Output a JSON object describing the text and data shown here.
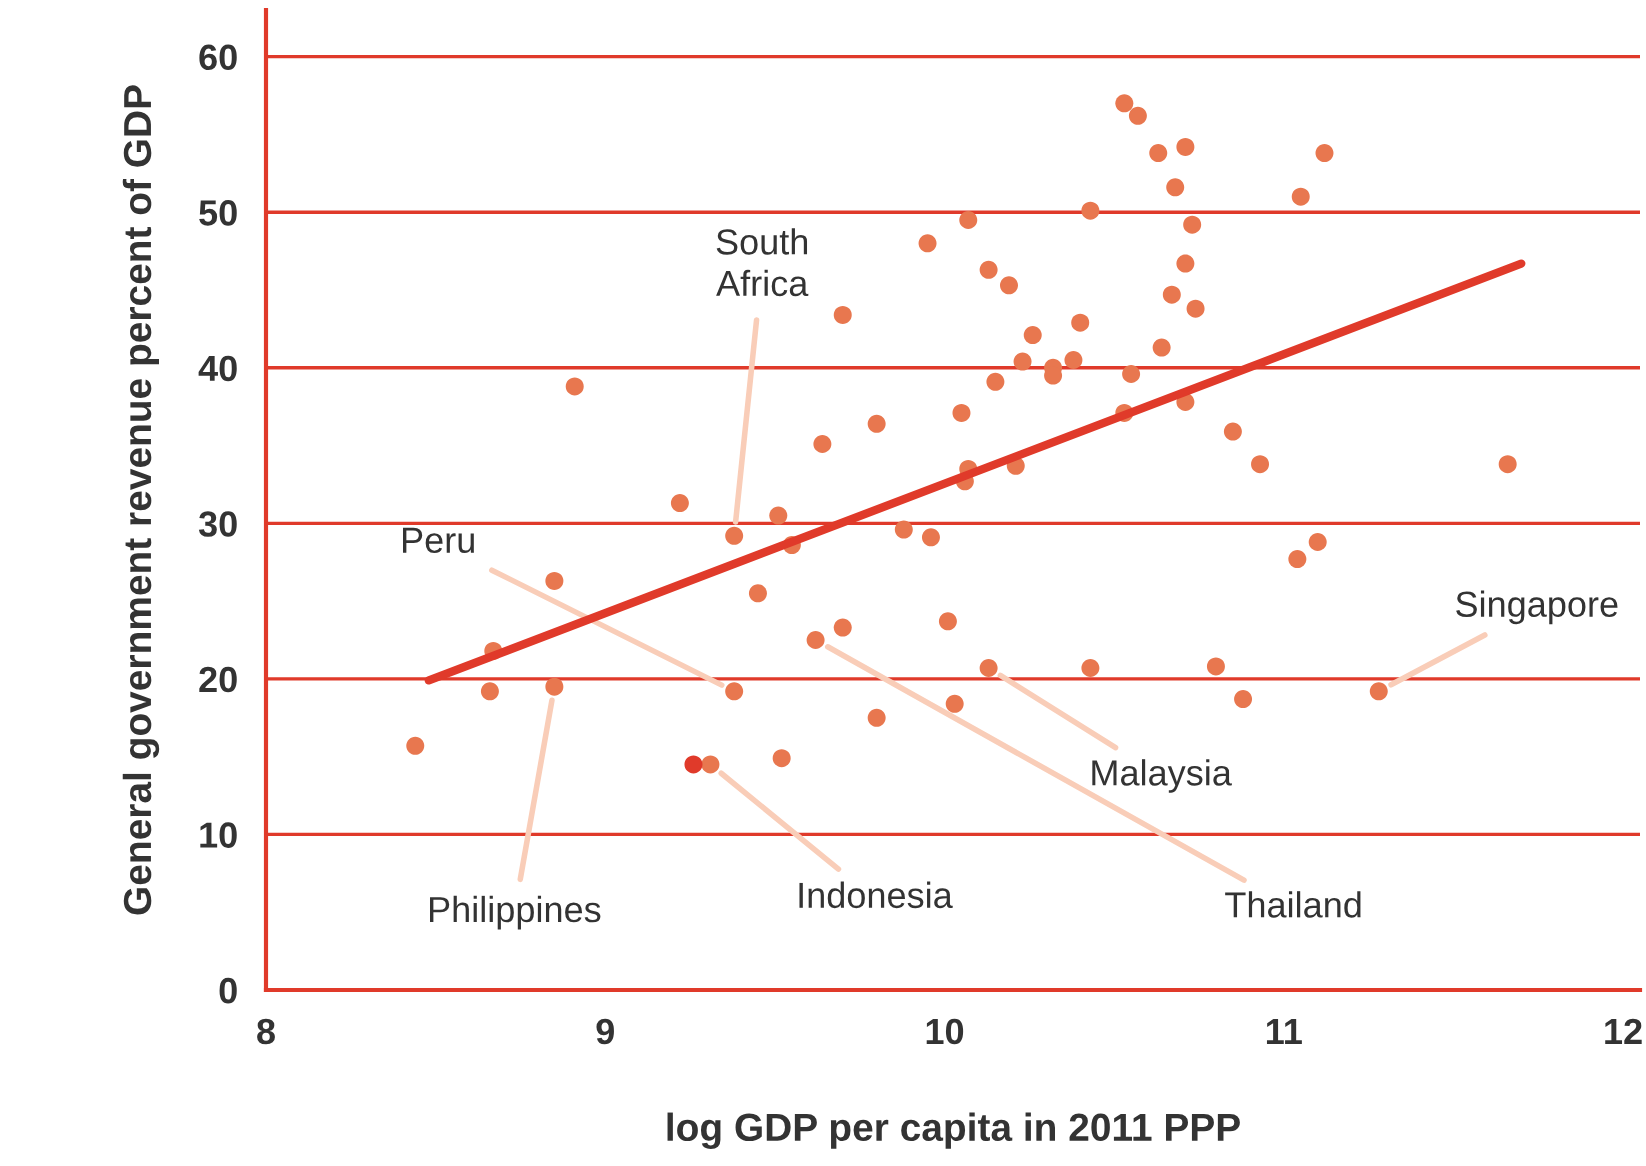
{
  "chart_data": {
    "type": "scatter",
    "xlabel": "log GDP per capita in 2011 PPP",
    "ylabel": "General government revenue percent of GDP",
    "xlim": [
      8,
      12.05
    ],
    "xticks": [
      8,
      9,
      10,
      11,
      12
    ],
    "ylim": [
      0,
      63
    ],
    "yticks": [
      0,
      10,
      20,
      30,
      40,
      50,
      60
    ],
    "grid": "y",
    "legend": false,
    "marker": "circle",
    "series": [
      {
        "color": "#e8774f",
        "x": [
          8.44,
          8.66,
          8.67,
          8.85,
          8.85,
          8.91,
          9.22,
          9.31,
          9.38,
          9.38,
          9.45,
          9.51,
          9.52,
          9.55,
          9.62,
          9.7,
          9.7,
          9.64,
          9.8,
          9.8,
          9.88,
          9.95,
          9.96,
          10.01,
          10.03,
          10.05,
          10.07,
          10.06,
          10.07,
          10.13,
          10.13,
          10.15,
          10.19,
          10.21,
          10.23,
          10.26,
          10.32,
          10.32,
          10.38,
          10.4,
          10.43,
          10.43,
          10.53,
          10.57,
          10.53,
          10.55,
          10.63,
          10.64,
          10.67,
          10.68,
          10.71,
          10.71,
          10.71,
          10.73,
          10.74,
          10.8,
          10.85,
          10.88,
          10.93,
          11.04,
          11.05,
          11.1,
          11.12,
          11.28,
          11.66
        ],
        "values": [
          15.7,
          19.2,
          21.8,
          26.3,
          19.5,
          38.8,
          31.3,
          14.5,
          29.2,
          19.2,
          25.5,
          30.5,
          14.9,
          28.6,
          22.5,
          23.3,
          43.4,
          35.1,
          36.4,
          17.5,
          29.6,
          48.0,
          29.1,
          23.7,
          18.4,
          37.1,
          33.5,
          32.7,
          49.5,
          46.3,
          20.7,
          39.1,
          45.3,
          33.7,
          40.4,
          42.1,
          40.0,
          39.5,
          40.5,
          42.9,
          50.1,
          20.7,
          57.0,
          56.2,
          37.1,
          39.6,
          53.8,
          41.3,
          44.7,
          51.6,
          54.2,
          46.7,
          37.8,
          49.2,
          43.8,
          20.8,
          35.9,
          18.7,
          33.8,
          27.7,
          51.0,
          28.8,
          53.8,
          19.2,
          33.8
        ]
      },
      {
        "color": "#e03a2a",
        "x": [
          9.26
        ],
        "values": [
          14.5
        ]
      },
      {
        "type": "line",
        "color": "#e03a2a",
        "marker": "none",
        "x": [
          8.48,
          11.7
        ],
        "values": [
          19.9,
          46.7
        ]
      }
    ],
    "annotations": [
      {
        "text": "South\nAfrica",
        "x": 9.38,
        "y": 29.2
      },
      {
        "text": "Peru",
        "x": 9.38,
        "y": 19.2
      },
      {
        "text": "Philippines",
        "x": 8.85,
        "y": 19.5
      },
      {
        "text": "Indonesia",
        "x": 9.31,
        "y": 14.5
      },
      {
        "text": "Thailand",
        "x": 9.62,
        "y": 22.5
      },
      {
        "text": "Malaysia",
        "x": 10.13,
        "y": 20.7
      },
      {
        "text": "Singapore",
        "x": 11.28,
        "y": 19.2
      }
    ]
  }
}
